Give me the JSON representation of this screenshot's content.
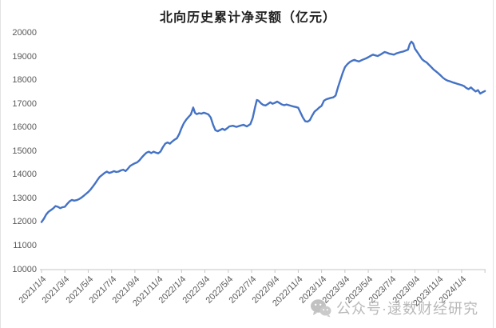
{
  "chart_title": "北向历史累计净买额（亿元）",
  "watermark": {
    "text": "公众号·逯数财经研究",
    "icon": "wechat-icon"
  },
  "colors": {
    "line": "#4472C4",
    "axis": "#c6c6c6",
    "tick_label": "#595959",
    "title": "#1f1f1f",
    "watermark": "#b3b3b3",
    "background": "#ffffff"
  },
  "chart_data": {
    "type": "line",
    "title": "北向历史累计净买额（亿元）",
    "series_name": "北向历史累计净买额",
    "legend": false,
    "grid": false,
    "y_axis": {
      "min": 10000,
      "max": 20000,
      "step": 1000,
      "tick_labels": [
        "20000",
        "19000",
        "18000",
        "17000",
        "16000",
        "15000",
        "14000",
        "13000",
        "12000",
        "11000",
        "10000"
      ]
    },
    "x_axis": {
      "months_per_tick": 2,
      "range_months": [
        0,
        38.2
      ],
      "tick_labels": [
        "2021/1/4",
        "2021/3/4",
        "2021/5/4",
        "2021/7/4",
        "2021/9/4",
        "2021/11/4",
        "2022/1/4",
        "2022/3/4",
        "2022/5/4",
        "2022/7/4",
        "2022/9/4",
        "2022/11/4",
        "2023/1/4",
        "2023/3/4",
        "2023/5/4",
        "2023/7/4",
        "2023/9/4",
        "2023/11/4",
        "2024/1/4"
      ]
    },
    "points_unit": "[months_since_2021-01-04, cumulative_net_buy_yi_yuan]",
    "points": [
      [
        0.0,
        12010
      ],
      [
        0.2,
        12150
      ],
      [
        0.4,
        12330
      ],
      [
        0.6,
        12450
      ],
      [
        0.8,
        12520
      ],
      [
        1.0,
        12590
      ],
      [
        1.2,
        12690
      ],
      [
        1.4,
        12660
      ],
      [
        1.6,
        12600
      ],
      [
        1.8,
        12640
      ],
      [
        2.0,
        12660
      ],
      [
        2.2,
        12780
      ],
      [
        2.4,
        12890
      ],
      [
        2.6,
        12950
      ],
      [
        2.8,
        12920
      ],
      [
        3.0,
        12940
      ],
      [
        3.2,
        12980
      ],
      [
        3.4,
        13040
      ],
      [
        3.6,
        13120
      ],
      [
        3.8,
        13200
      ],
      [
        4.0,
        13280
      ],
      [
        4.2,
        13390
      ],
      [
        4.4,
        13520
      ],
      [
        4.6,
        13650
      ],
      [
        4.8,
        13800
      ],
      [
        5.0,
        13930
      ],
      [
        5.2,
        14010
      ],
      [
        5.4,
        14090
      ],
      [
        5.6,
        14150
      ],
      [
        5.8,
        14090
      ],
      [
        6.0,
        14120
      ],
      [
        6.2,
        14170
      ],
      [
        6.4,
        14130
      ],
      [
        6.6,
        14150
      ],
      [
        6.8,
        14200
      ],
      [
        7.0,
        14230
      ],
      [
        7.2,
        14170
      ],
      [
        7.4,
        14270
      ],
      [
        7.6,
        14390
      ],
      [
        7.8,
        14450
      ],
      [
        8.0,
        14500
      ],
      [
        8.2,
        14540
      ],
      [
        8.4,
        14630
      ],
      [
        8.6,
        14750
      ],
      [
        8.8,
        14860
      ],
      [
        9.0,
        14950
      ],
      [
        9.2,
        14990
      ],
      [
        9.4,
        14930
      ],
      [
        9.6,
        14990
      ],
      [
        9.8,
        14950
      ],
      [
        10.0,
        14920
      ],
      [
        10.2,
        15000
      ],
      [
        10.4,
        15180
      ],
      [
        10.6,
        15330
      ],
      [
        10.8,
        15380
      ],
      [
        11.0,
        15330
      ],
      [
        11.2,
        15420
      ],
      [
        11.4,
        15500
      ],
      [
        11.6,
        15560
      ],
      [
        11.8,
        15740
      ],
      [
        12.0,
        15990
      ],
      [
        12.2,
        16200
      ],
      [
        12.4,
        16350
      ],
      [
        12.6,
        16460
      ],
      [
        12.8,
        16570
      ],
      [
        13.0,
        16860
      ],
      [
        13.15,
        16640
      ],
      [
        13.3,
        16580
      ],
      [
        13.5,
        16620
      ],
      [
        13.7,
        16600
      ],
      [
        13.9,
        16640
      ],
      [
        14.1,
        16610
      ],
      [
        14.3,
        16570
      ],
      [
        14.5,
        16440
      ],
      [
        14.7,
        16130
      ],
      [
        14.9,
        15900
      ],
      [
        15.1,
        15860
      ],
      [
        15.3,
        15910
      ],
      [
        15.5,
        15960
      ],
      [
        15.7,
        15910
      ],
      [
        15.9,
        15980
      ],
      [
        16.1,
        16060
      ],
      [
        16.4,
        16090
      ],
      [
        16.7,
        16040
      ],
      [
        17.0,
        16090
      ],
      [
        17.3,
        16130
      ],
      [
        17.6,
        16060
      ],
      [
        17.9,
        16160
      ],
      [
        18.1,
        16420
      ],
      [
        18.3,
        16880
      ],
      [
        18.45,
        17180
      ],
      [
        18.6,
        17150
      ],
      [
        18.8,
        17040
      ],
      [
        19.0,
        16970
      ],
      [
        19.2,
        16950
      ],
      [
        19.4,
        17010
      ],
      [
        19.6,
        17080
      ],
      [
        19.8,
        17020
      ],
      [
        20.0,
        17060
      ],
      [
        20.2,
        17110
      ],
      [
        20.4,
        17050
      ],
      [
        20.6,
        16990
      ],
      [
        20.8,
        16960
      ],
      [
        21.0,
        16990
      ],
      [
        21.2,
        16960
      ],
      [
        21.4,
        16930
      ],
      [
        21.6,
        16900
      ],
      [
        21.8,
        16880
      ],
      [
        22.0,
        16850
      ],
      [
        22.2,
        16640
      ],
      [
        22.4,
        16430
      ],
      [
        22.6,
        16280
      ],
      [
        22.8,
        16260
      ],
      [
        23.0,
        16330
      ],
      [
        23.2,
        16530
      ],
      [
        23.4,
        16690
      ],
      [
        23.6,
        16770
      ],
      [
        23.8,
        16860
      ],
      [
        24.0,
        16930
      ],
      [
        24.2,
        17150
      ],
      [
        24.4,
        17210
      ],
      [
        24.6,
        17240
      ],
      [
        24.8,
        17270
      ],
      [
        25.0,
        17290
      ],
      [
        25.2,
        17370
      ],
      [
        25.4,
        17710
      ],
      [
        25.6,
        18010
      ],
      [
        25.8,
        18310
      ],
      [
        26.0,
        18570
      ],
      [
        26.2,
        18690
      ],
      [
        26.4,
        18780
      ],
      [
        26.6,
        18840
      ],
      [
        26.8,
        18880
      ],
      [
        27.0,
        18840
      ],
      [
        27.2,
        18810
      ],
      [
        27.4,
        18860
      ],
      [
        27.6,
        18900
      ],
      [
        27.8,
        18940
      ],
      [
        28.0,
        18990
      ],
      [
        28.2,
        19050
      ],
      [
        28.4,
        19100
      ],
      [
        28.6,
        19070
      ],
      [
        28.8,
        19040
      ],
      [
        29.0,
        19090
      ],
      [
        29.2,
        19150
      ],
      [
        29.4,
        19210
      ],
      [
        29.6,
        19180
      ],
      [
        29.8,
        19140
      ],
      [
        30.0,
        19120
      ],
      [
        30.2,
        19100
      ],
      [
        30.4,
        19150
      ],
      [
        30.6,
        19180
      ],
      [
        30.8,
        19210
      ],
      [
        31.0,
        19230
      ],
      [
        31.2,
        19270
      ],
      [
        31.4,
        19310
      ],
      [
        31.55,
        19540
      ],
      [
        31.7,
        19650
      ],
      [
        31.85,
        19570
      ],
      [
        32.0,
        19350
      ],
      [
        32.2,
        19210
      ],
      [
        32.4,
        19060
      ],
      [
        32.6,
        18910
      ],
      [
        32.8,
        18830
      ],
      [
        33.0,
        18770
      ],
      [
        33.2,
        18670
      ],
      [
        33.4,
        18570
      ],
      [
        33.6,
        18470
      ],
      [
        33.8,
        18390
      ],
      [
        34.0,
        18310
      ],
      [
        34.2,
        18220
      ],
      [
        34.4,
        18120
      ],
      [
        34.6,
        18050
      ],
      [
        34.8,
        18000
      ],
      [
        35.0,
        17970
      ],
      [
        35.2,
        17930
      ],
      [
        35.4,
        17900
      ],
      [
        35.6,
        17870
      ],
      [
        35.8,
        17840
      ],
      [
        36.0,
        17810
      ],
      [
        36.2,
        17770
      ],
      [
        36.4,
        17690
      ],
      [
        36.6,
        17640
      ],
      [
        36.8,
        17710
      ],
      [
        37.0,
        17620
      ],
      [
        37.2,
        17540
      ],
      [
        37.4,
        17600
      ],
      [
        37.6,
        17450
      ],
      [
        37.8,
        17510
      ],
      [
        38.0,
        17560
      ]
    ]
  }
}
